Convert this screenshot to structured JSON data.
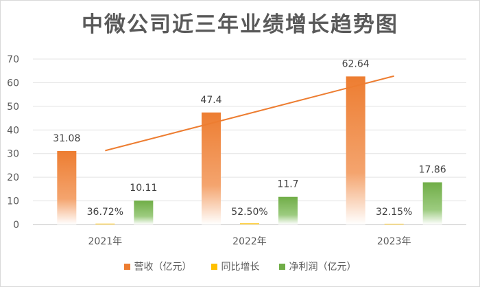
{
  "chart_data": {
    "type": "bar",
    "title": "中微公司近三年业绩增长趋势图",
    "categories": [
      "2021年",
      "2022年",
      "2023年"
    ],
    "ylim": [
      0,
      70
    ],
    "yticks": [
      "0",
      "10",
      "20",
      "30",
      "40",
      "50",
      "60",
      "70"
    ],
    "grid": true,
    "legend_position": "bottom",
    "series": [
      {
        "name": "营收（亿元）",
        "values": [
          31.08,
          47.4,
          62.64
        ],
        "labels": [
          "31.08",
          "47.4",
          "62.64"
        ],
        "color": "#ED7D31"
      },
      {
        "name": "同比增长",
        "values": [
          0.3672,
          0.525,
          0.3215
        ],
        "labels": [
          "36.72%",
          "52.50%",
          "32.15%"
        ],
        "color": "#FFC000"
      },
      {
        "name": "净利润（亿元）",
        "values": [
          10.11,
          11.7,
          17.86
        ],
        "labels": [
          "10.11",
          "11.7",
          "17.86"
        ],
        "color": "#70AD47"
      }
    ],
    "trendline": {
      "series": "营收（亿元）",
      "color": "#ED7D31"
    }
  }
}
